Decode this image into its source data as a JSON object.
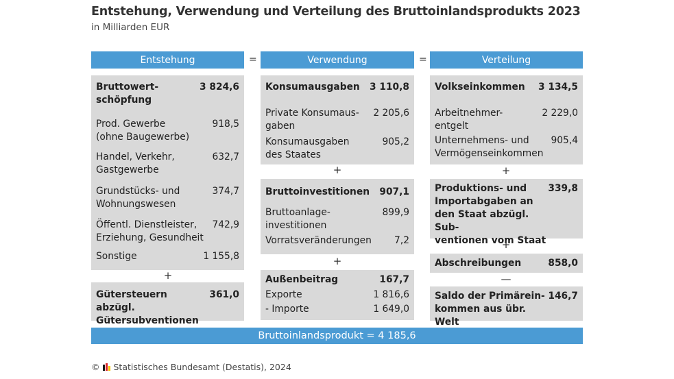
{
  "title": "Entstehung, Verwendung und Verteilung des Bruttoinlandsprodukts 2023",
  "subtitle": "in Milliarden EUR",
  "headers": {
    "entstehung": "Entstehung",
    "verwendung": "Verwendung",
    "verteilung": "Verteilung"
  },
  "equals": "=",
  "plus": "+",
  "minus": "—",
  "entstehung": {
    "box1": [
      {
        "label": "Bruttowert-\nschöpfung",
        "value": "3 824,6"
      },
      {
        "label": "Prod. Gewerbe\n(ohne Baugewerbe)",
        "value": "918,5"
      },
      {
        "label": "Handel, Verkehr,\nGastgewerbe",
        "value": "632,7"
      },
      {
        "label": "Grundstücks- und\nWohnungswesen",
        "value": "374,7"
      },
      {
        "label": "Öffentl. Dienstleister,\nErziehung, Gesundheit",
        "value": "742,9"
      },
      {
        "label": "Sonstige",
        "value": "1 155,8"
      }
    ],
    "box2": [
      {
        "label": "Gütersteuern abzügl.\nGütersubventionen",
        "value": "361,0"
      }
    ]
  },
  "verwendung": {
    "box1": [
      {
        "label": "Konsumausgaben",
        "value": "3 110,8"
      },
      {
        "label": "Private Konsumaus-\ngaben",
        "value": "2 205,6"
      },
      {
        "label": "Konsumausgaben\ndes Staates",
        "value": "905,2"
      }
    ],
    "box2": [
      {
        "label": "Bruttoinvestitionen",
        "value": "907,1"
      },
      {
        "label": "Bruttoanlage-\ninvestitionen",
        "value": "899,9"
      },
      {
        "label": "Vorratsveränderungen",
        "value": "7,2"
      }
    ],
    "box3": [
      {
        "label": "Außenbeitrag",
        "value": "167,7"
      },
      {
        "label": "Exporte",
        "value": "1 816,6"
      },
      {
        "label": "- Importe",
        "value": "1 649,0"
      }
    ]
  },
  "verteilung": {
    "box1": [
      {
        "label": "Volkseinkommen",
        "value": "3 134,5"
      },
      {
        "label": "Arbeitnehmer-\nentgelt",
        "value": "2 229,0"
      },
      {
        "label": "Unternehmens- und\nVermögenseinkommen",
        "value": "905,4"
      }
    ],
    "box2": [
      {
        "label": "Produktions- und\nImportabgaben an\nden Staat abzügl. Sub-\nventionen vom Staat",
        "value": "339,8"
      }
    ],
    "box3": [
      {
        "label": "Abschreibungen",
        "value": "858,0"
      }
    ],
    "box4": [
      {
        "label": "Saldo der Primärein-\nkommen aus übr. Welt",
        "value": "146,7"
      }
    ]
  },
  "total": "Bruttoinlandsprodukt = 4 185,6",
  "footer": "© ",
  "footer_source": "Statistisches Bundesamt (Destatis), 2024",
  "colors": {
    "header": "#4b9bd4",
    "box": "#d9d9d9"
  }
}
